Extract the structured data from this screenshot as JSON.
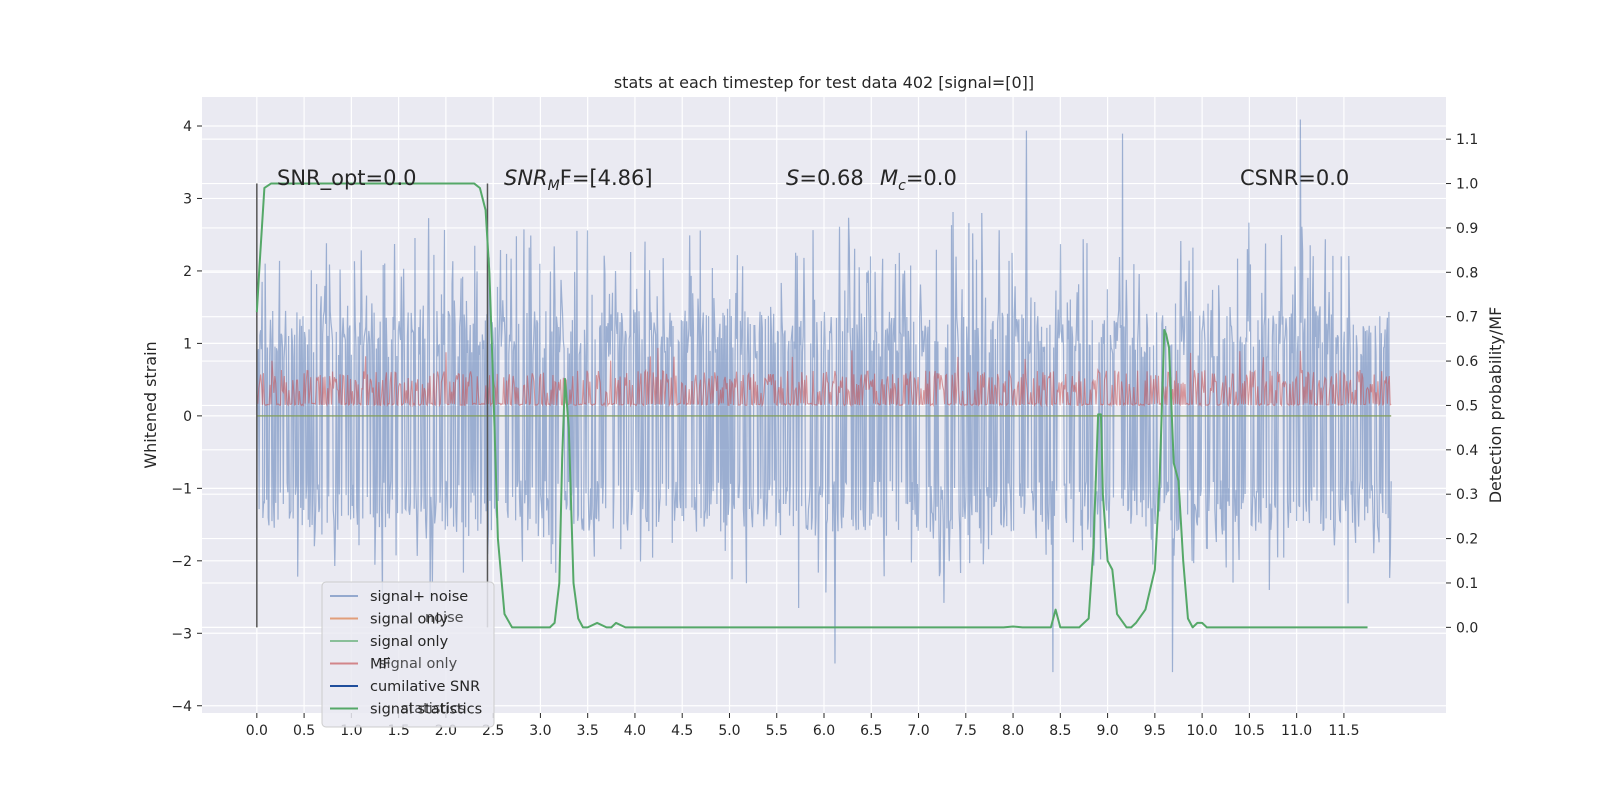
{
  "chart_data": {
    "type": "line",
    "title": "stats at each timestep for test data 402 [signal=[0]]",
    "ylabel": "Whitened strain",
    "ylabel_right": "Detection probability/MF",
    "xlim": [
      -0.58,
      12.58
    ],
    "ylim": [
      -4.1,
      4.4
    ],
    "ylim_right": [
      -0.193,
      1.195
    ],
    "x_ticks": [
      "0.0",
      "0.5",
      "1.0",
      "1.5",
      "2.0",
      "2.5",
      "3.0",
      "3.5",
      "4.0",
      "4.5",
      "5.0",
      "5.5",
      "6.0",
      "6.5",
      "7.0",
      "7.5",
      "8.0",
      "8.5",
      "9.0",
      "9.5",
      "10.0",
      "10.5",
      "11.0",
      "11.5"
    ],
    "y_ticks": [
      "−4",
      "−3",
      "−2",
      "−1",
      "0",
      "1",
      "2",
      "3",
      "4"
    ],
    "y_ticks_right": [
      "0.0",
      "0.1",
      "0.2",
      "0.3",
      "0.4",
      "0.5",
      "0.6",
      "0.7",
      "0.8",
      "0.9",
      "1.0",
      "1.1"
    ],
    "grid": true,
    "annotations": {
      "snr_opt": "SNR_opt=0.0",
      "snr_mf_base": "SNR",
      "snr_mf_sub": "M",
      "snr_mf_rest": "F=[4.86]",
      "s_label": "S",
      "s_value": "=0.68",
      "mc_label": "M",
      "mc_sub": "c",
      "mc_value": "=0.0",
      "csnr": "CSNR=0.0"
    },
    "vertical_lines_x": [
      0.0,
      2.44
    ],
    "legend": {
      "placement": "lower-left",
      "entries": [
        {
          "label": "signal+ noise",
          "color": "#4c72b0",
          "alpha": 0.55
        },
        {
          "label": "signal only",
          "color": "#dd8452",
          "alpha": 0.75
        },
        {
          "label": "signal only",
          "color": "#55a868",
          "alpha": 0.65
        },
        {
          "label": "MF",
          "color": "#c44e52",
          "alpha": 0.65
        },
        {
          "label": "cumilative SNR",
          "color": "#1f4e9c",
          "alpha": 1.0
        },
        {
          "label": "signal statistics",
          "color": "#55a868",
          "alpha": 1.0
        }
      ],
      "ghost_entries": [
        "noise",
        "signal only",
        "statistics"
      ]
    },
    "series": [
      {
        "name": "signal statistics",
        "axis": "right",
        "color": "#55a868",
        "x": [
          0.0,
          0.03,
          0.08,
          0.15,
          0.3,
          0.6,
          1.0,
          1.5,
          2.0,
          2.2,
          2.3,
          2.36,
          2.42,
          2.46,
          2.5,
          2.55,
          2.62,
          2.7,
          2.8,
          3.0,
          3.1,
          3.15,
          3.2,
          3.23,
          3.26,
          3.3,
          3.35,
          3.4,
          3.45,
          3.5,
          3.6,
          3.7,
          3.75,
          3.8,
          3.9,
          4.0,
          4.5,
          5.0,
          6.0,
          7.0,
          7.9,
          8.0,
          8.1,
          8.3,
          8.4,
          8.45,
          8.5,
          8.6,
          8.7,
          8.8,
          8.85,
          8.9,
          8.93,
          8.95,
          9.0,
          9.05,
          9.1,
          9.2,
          9.25,
          9.3,
          9.4,
          9.5,
          9.55,
          9.6,
          9.62,
          9.65,
          9.7,
          9.75,
          9.8,
          9.85,
          9.9,
          9.95,
          10.0,
          10.05,
          10.1,
          10.2,
          10.5,
          10.8,
          11.0,
          11.3,
          11.5,
          11.75
        ],
        "values": [
          0.71,
          0.82,
          0.99,
          1.0,
          1.0,
          1.0,
          1.0,
          1.0,
          1.0,
          1.0,
          1.0,
          0.99,
          0.94,
          0.8,
          0.55,
          0.2,
          0.03,
          0.0,
          0.0,
          0.0,
          0.0,
          0.01,
          0.1,
          0.38,
          0.56,
          0.45,
          0.1,
          0.02,
          0.0,
          0.0,
          0.01,
          0.0,
          0.0,
          0.01,
          0.0,
          0.0,
          0.0,
          0.0,
          0.0,
          0.0,
          0.0,
          0.002,
          0.0,
          0.0,
          0.0,
          0.04,
          0.0,
          0.0,
          0.0,
          0.02,
          0.18,
          0.48,
          0.48,
          0.3,
          0.15,
          0.13,
          0.03,
          0.0,
          0.0,
          0.01,
          0.04,
          0.13,
          0.33,
          0.67,
          0.66,
          0.63,
          0.37,
          0.33,
          0.15,
          0.02,
          0.0,
          0.01,
          0.01,
          0.0,
          0.0,
          0.0,
          0.0,
          0.0,
          0.0,
          0.0,
          0.0,
          0.0
        ]
      }
    ],
    "noise_series": [
      {
        "name": "signal+ noise",
        "color": "#4c72b0",
        "x_range": [
          0.0,
          12.0
        ],
        "band_low": -1.6,
        "band_high": 1.45,
        "spike_max": 4.1,
        "spike_min": -3.6
      },
      {
        "name": "MF",
        "color": "#c44e52",
        "axis": "right",
        "x_range": [
          0.0,
          12.0
        ],
        "range_right": [
          0.5,
          0.58
        ]
      }
    ]
  }
}
